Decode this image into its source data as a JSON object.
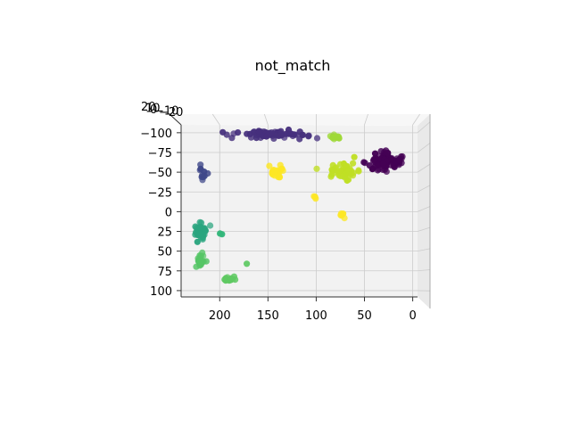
{
  "chart_data": {
    "type": "scatter",
    "projection": "3d",
    "title": "not_match",
    "xlabel": "",
    "ylabel": "",
    "zlabel": "",
    "grid": true,
    "xlim": [
      -5,
      240
    ],
    "ylim": [
      108,
      -110
    ],
    "x_ticks": [
      "200",
      "150",
      "100",
      "50",
      "0"
    ],
    "x_tick_values": [
      200,
      150,
      100,
      50,
      0
    ],
    "y_ticks": [
      "−100",
      "−75",
      "−50",
      "−25",
      "0",
      "25",
      "50",
      "75",
      "100"
    ],
    "y_tick_values": [
      -100,
      -75,
      -50,
      -25,
      0,
      25,
      50,
      75,
      100
    ],
    "z_ticks": [
      "20",
      "10",
      "0",
      "−10",
      "−20"
    ],
    "colormap": [
      "#440154",
      "#472d7b",
      "#3b528b",
      "#2c728e",
      "#21918c",
      "#28ae80",
      "#5ec962",
      "#addc30",
      "#fde725"
    ],
    "clusters": [
      {
        "label": 0,
        "color": "#440154",
        "center": [
          30,
          -63
        ],
        "spread": [
          13,
          10
        ],
        "count": 65
      },
      {
        "label": 0,
        "color": "#440154",
        "center": [
          16,
          -65
        ],
        "spread": [
          8,
          7
        ],
        "count": 18
      },
      {
        "label": 1,
        "color": "#46307d",
        "center": [
          145,
          -98
        ],
        "spread": [
          30,
          4
        ],
        "count": 80
      },
      {
        "label": 2,
        "color": "#3f4889",
        "center": [
          218,
          -45
        ],
        "spread": [
          4,
          10
        ],
        "count": 10
      },
      {
        "label": 6,
        "color": "#2ba57f",
        "center": [
          220,
          25
        ],
        "spread": [
          5,
          8
        ],
        "count": 45
      },
      {
        "label": 6,
        "color": "#33b67a",
        "center": [
          200,
          28
        ],
        "spread": [
          2,
          2
        ],
        "count": 2
      },
      {
        "label": 7,
        "color": "#56c566",
        "center": [
          219,
          63
        ],
        "spread": [
          4,
          7
        ],
        "count": 25
      },
      {
        "label": 7,
        "color": "#5fc962",
        "center": [
          188,
          85
        ],
        "spread": [
          5,
          4
        ],
        "count": 16
      },
      {
        "label": 7,
        "color": "#5ec962",
        "center": [
          172,
          66
        ],
        "spread": [
          0,
          0
        ],
        "count": 1
      },
      {
        "label": 8,
        "color": "#9fd938",
        "center": [
          80,
          -95
        ],
        "spread": [
          5,
          3
        ],
        "count": 12
      },
      {
        "label": 8,
        "color": "#c0df25",
        "center": [
          70,
          -52
        ],
        "spread": [
          15,
          10
        ],
        "count": 45
      },
      {
        "label": 9,
        "color": "#fde725",
        "center": [
          140,
          -50
        ],
        "spread": [
          8,
          5
        ],
        "count": 25
      },
      {
        "label": 9,
        "color": "#fde725",
        "center": [
          101,
          -18
        ],
        "spread": [
          1,
          3
        ],
        "count": 4
      },
      {
        "label": 9,
        "color": "#fde725",
        "center": [
          73,
          5
        ],
        "spread": [
          2,
          4
        ],
        "count": 5
      }
    ]
  }
}
